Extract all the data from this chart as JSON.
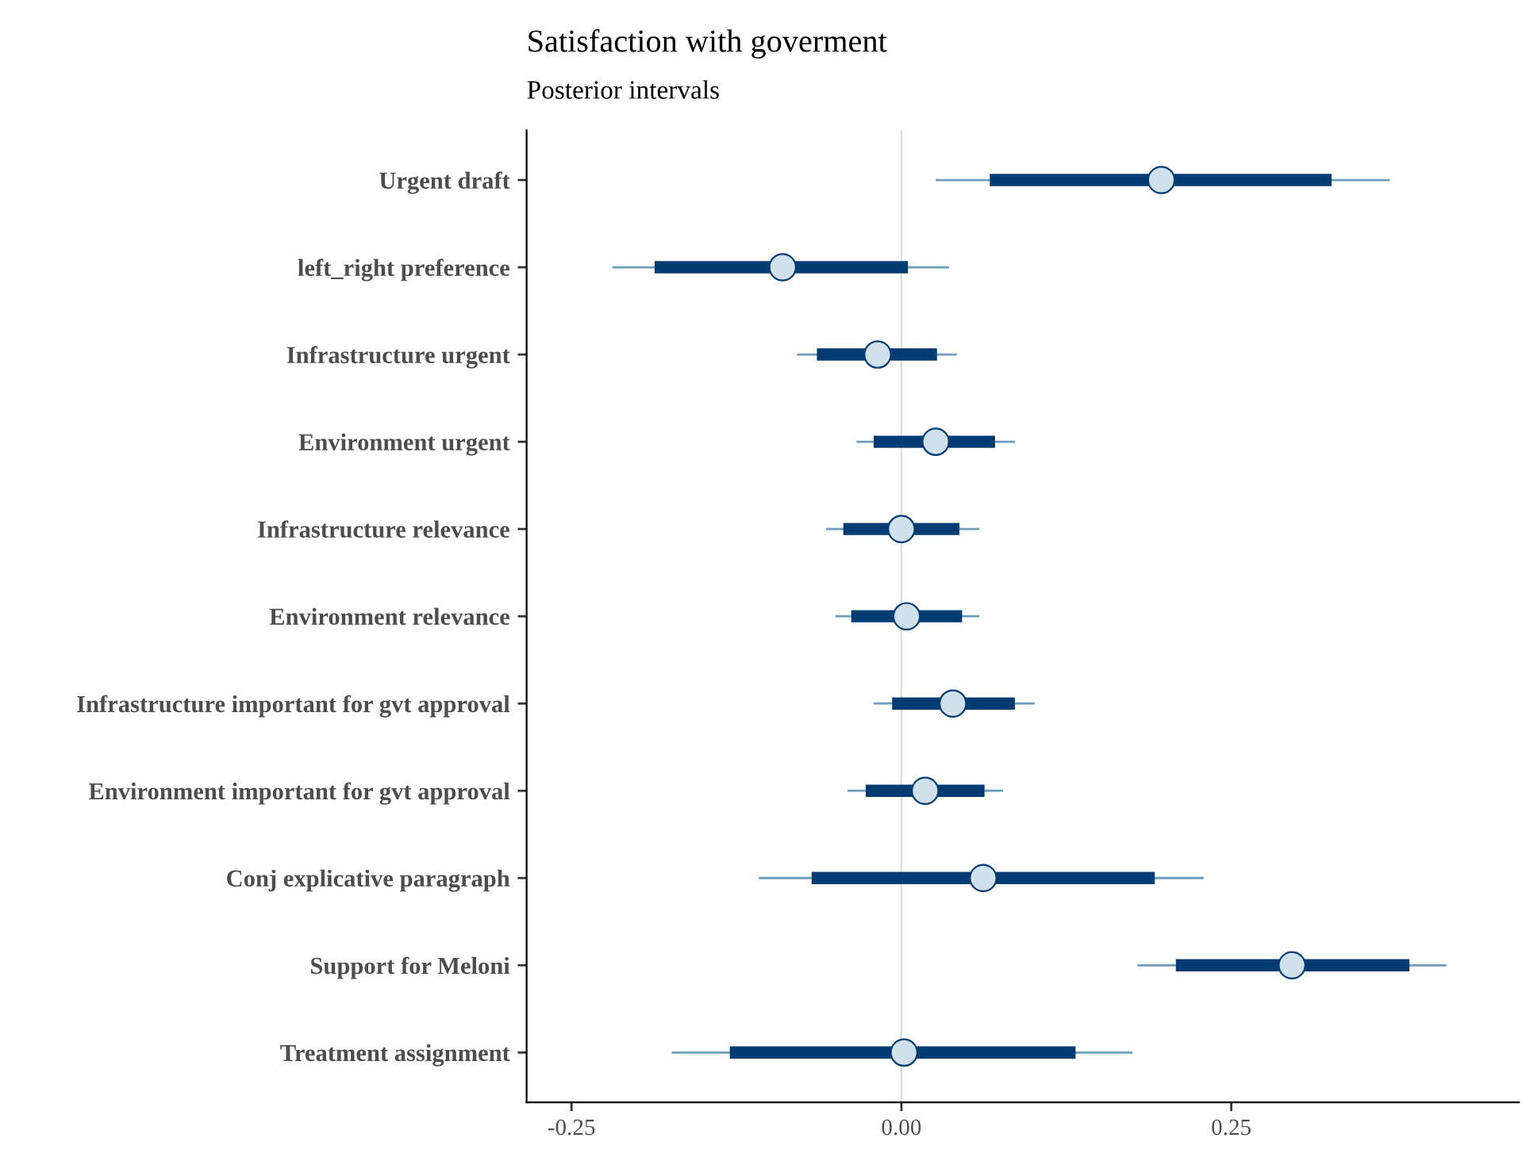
{
  "chart_data": {
    "type": "box",
    "orientation": "horizontal",
    "title": "Satisfaction with goverment",
    "subtitle": "Posterior intervals",
    "categories": [
      "Urgent draft",
      "left_right preference",
      "Infrastructure urgent",
      "Environment urgent",
      "Infrastructure relevance",
      "Environment relevance",
      "Infrastructure important for gvt approval",
      "Environment important for gvt approval",
      "Conj explicative paragraph",
      "Support for Meloni",
      "Treatment assignment"
    ],
    "series": [
      {
        "color": "#033c73",
        "boxes": [
          {
            "low": 0.026,
            "q1": 0.067,
            "median": 0.197,
            "q3": 0.326,
            "high": 0.37
          },
          {
            "low": -0.219,
            "q1": -0.187,
            "median": -0.09,
            "q3": 0.005,
            "high": 0.036
          },
          {
            "low": -0.079,
            "q1": -0.064,
            "median": -0.018,
            "q3": 0.027,
            "high": 0.042
          },
          {
            "low": -0.034,
            "q1": -0.021,
            "median": 0.026,
            "q3": 0.071,
            "high": 0.086
          },
          {
            "low": -0.057,
            "q1": -0.044,
            "median": 0.0,
            "q3": 0.044,
            "high": 0.059
          },
          {
            "low": -0.05,
            "q1": -0.038,
            "median": 0.004,
            "q3": 0.046,
            "high": 0.059
          },
          {
            "low": -0.021,
            "q1": -0.007,
            "median": 0.039,
            "q3": 0.086,
            "high": 0.101
          },
          {
            "low": -0.041,
            "q1": -0.027,
            "median": 0.018,
            "q3": 0.063,
            "high": 0.077
          },
          {
            "low": -0.108,
            "q1": -0.068,
            "median": 0.062,
            "q3": 0.192,
            "high": 0.229
          },
          {
            "low": 0.179,
            "q1": 0.208,
            "median": 0.296,
            "q3": 0.385,
            "high": 0.413
          },
          {
            "low": -0.174,
            "q1": -0.13,
            "median": 0.002,
            "q3": 0.132,
            "high": 0.175
          }
        ]
      }
    ],
    "xlim": [
      -0.284,
      0.468
    ],
    "xticks": [
      {
        "value": -0.25,
        "label": "-0.25"
      },
      {
        "value": 0,
        "label": "0.00"
      },
      {
        "value": 0.25,
        "label": "0.25"
      }
    ],
    "ref_lines": [
      {
        "axis": "x",
        "value": 0,
        "color": "#dcdcdc"
      }
    ],
    "grid": false,
    "marker": "circle"
  }
}
